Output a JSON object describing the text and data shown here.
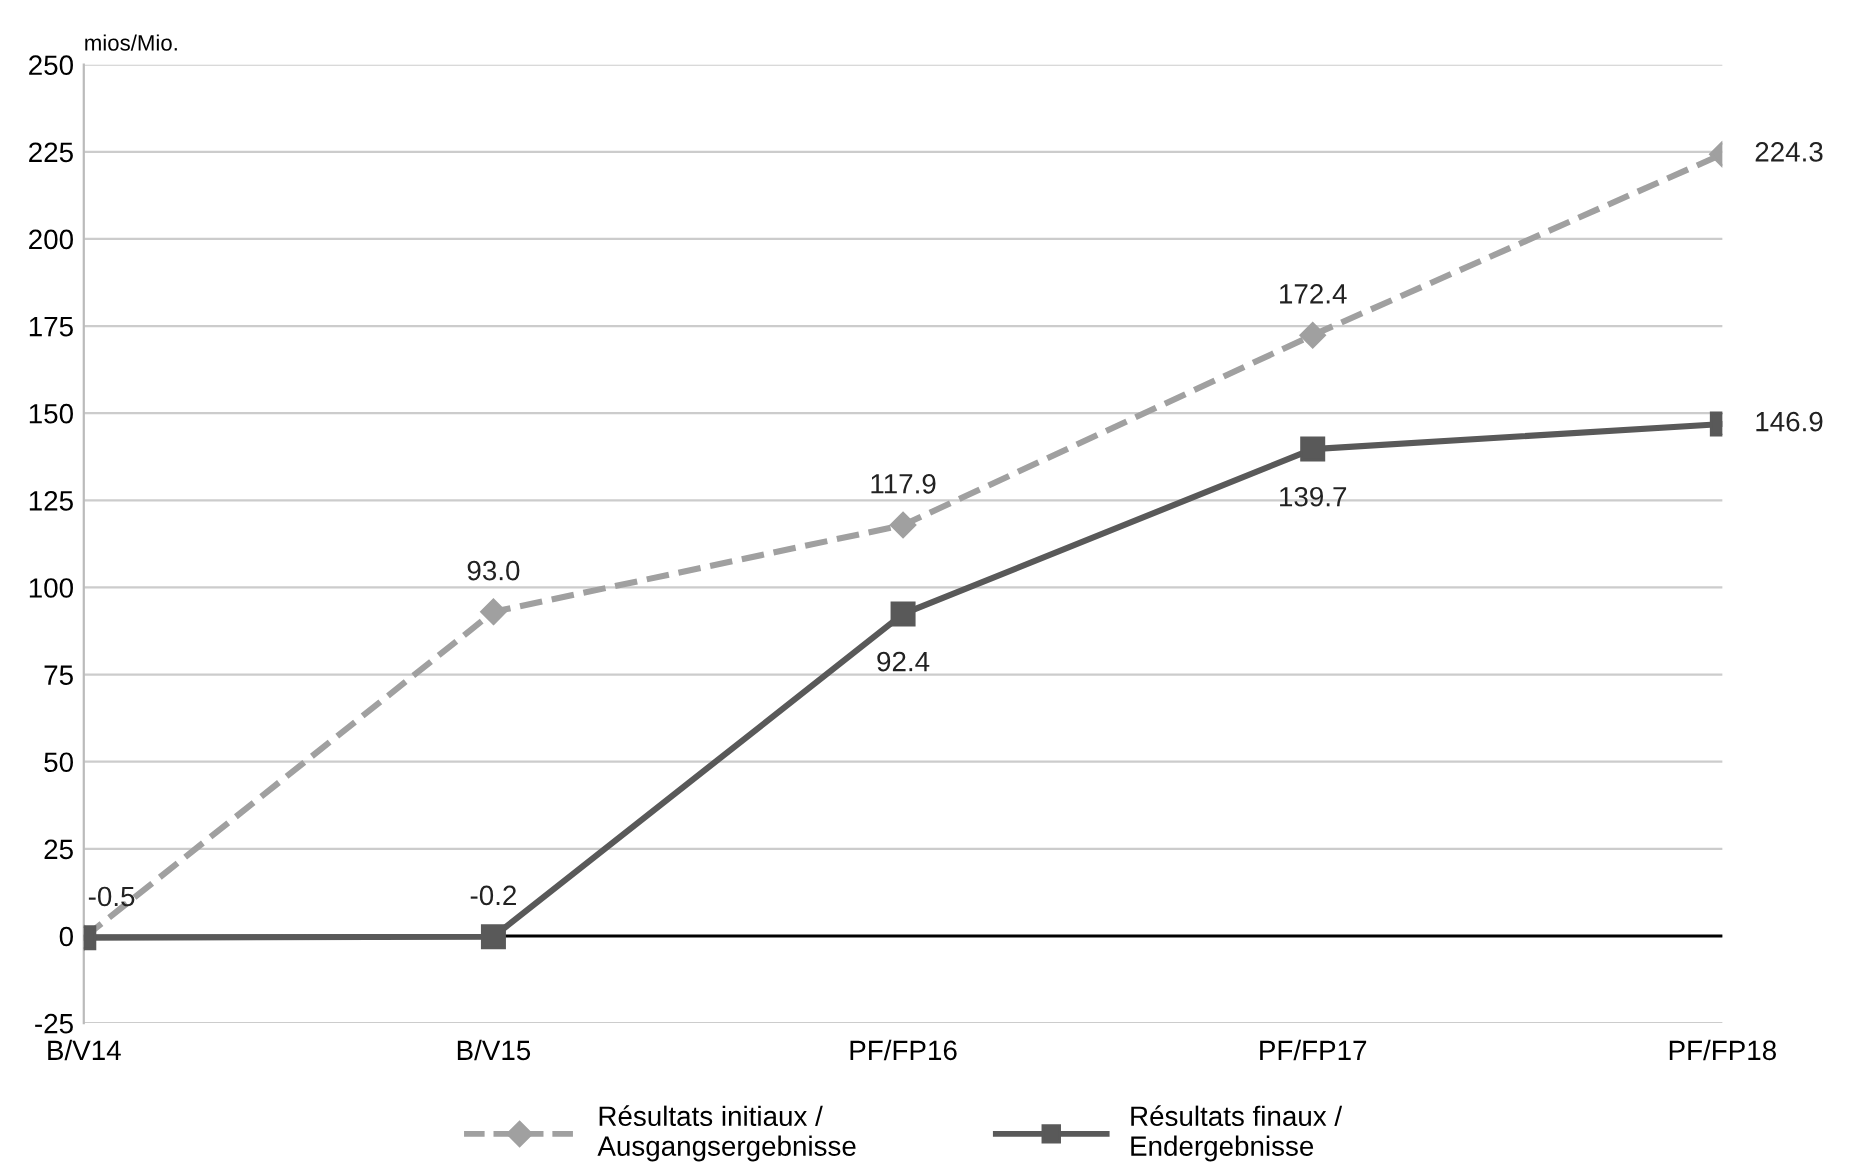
{
  "chart_data": {
    "type": "line",
    "ylabel": "mios/Mio.",
    "categories": [
      "B/V14",
      "B/V15",
      "PF/FP16",
      "PF/FP17",
      "PF/FP18"
    ],
    "series": [
      {
        "name": "Résultats initiaux /\nAusgangsergebnisse",
        "color": "#a0a0a0",
        "marker": "diamond",
        "line_style": "dashed",
        "values": [
          -0.5,
          93.0,
          117.9,
          172.4,
          224.3
        ],
        "value_labels": [
          "-0.5",
          "93.0",
          "117.9",
          "172.4",
          "224.3"
        ]
      },
      {
        "name": "Résultats finaux /\nEndergebnisse",
        "color": "#595959",
        "marker": "square",
        "line_style": "solid",
        "values": [
          -0.5,
          -0.2,
          92.4,
          139.7,
          146.9
        ],
        "value_labels": [
          null,
          "-0.2",
          "92.4",
          "139.7",
          "146.9"
        ]
      }
    ],
    "ylim": [
      -25,
      250
    ],
    "yticks": [
      -25,
      0,
      25,
      50,
      75,
      100,
      125,
      150,
      175,
      200,
      225,
      250
    ],
    "ref_lines": [
      {
        "axis": "y",
        "value": 0,
        "color": "#000000",
        "line_style": "solid"
      }
    ],
    "grid": "y",
    "legend": "bottom"
  }
}
